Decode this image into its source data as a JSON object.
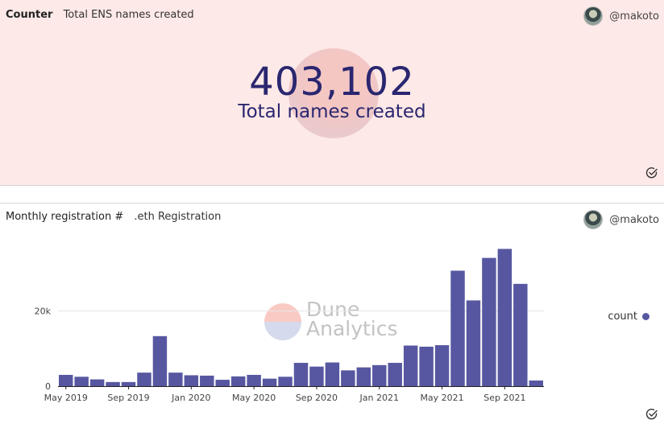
{
  "counter": {
    "name": "Counter",
    "subtitle": "Total ENS names created",
    "author": "@makoto",
    "value": "403,102",
    "label": "Total names created"
  },
  "chart": {
    "name": "Monthly registration #",
    "subtitle": ".eth Registration",
    "author": "@makoto",
    "watermark_line1": "Dune",
    "watermark_line2": "Analytics",
    "legend_label": "count"
  },
  "colors": {
    "bar": "#5757a1",
    "counter_bg": "#fde9e7",
    "counter_text": "#2a2670"
  },
  "chart_data": {
    "type": "bar",
    "x": [
      "2019-05",
      "2019-06",
      "2019-07",
      "2019-08",
      "2019-09",
      "2019-10",
      "2019-11",
      "2019-12",
      "2020-01",
      "2020-02",
      "2020-03",
      "2020-04",
      "2020-05",
      "2020-06",
      "2020-07",
      "2020-08",
      "2020-09",
      "2020-10",
      "2020-11",
      "2020-12",
      "2021-01",
      "2021-02",
      "2021-03",
      "2021-04",
      "2021-05",
      "2021-06",
      "2021-07",
      "2021-08",
      "2021-09",
      "2021-10",
      "2021-11"
    ],
    "series": [
      {
        "name": "count",
        "values": [
          3000,
          2500,
          1800,
          1100,
          1100,
          3600,
          13300,
          3600,
          2900,
          2800,
          1700,
          2600,
          3000,
          2000,
          2500,
          6200,
          5200,
          6300,
          4200,
          5000,
          5600,
          6200,
          10800,
          10500,
          10900,
          30700,
          22800,
          34100,
          36500,
          27200,
          1500
        ]
      }
    ],
    "x_ticks": [
      "May 2019",
      "Sep 2019",
      "Jan 2020",
      "May 2020",
      "Sep 2020",
      "Jan 2021",
      "May 2021",
      "Sep 2021"
    ],
    "x_tick_positions": [
      0,
      4,
      8,
      12,
      16,
      20,
      24,
      28
    ],
    "y_ticks": [
      0,
      20000
    ],
    "y_tick_labels": [
      "0",
      "20k"
    ],
    "ylim": [
      0,
      40000
    ],
    "grid": true,
    "legend": "right"
  }
}
